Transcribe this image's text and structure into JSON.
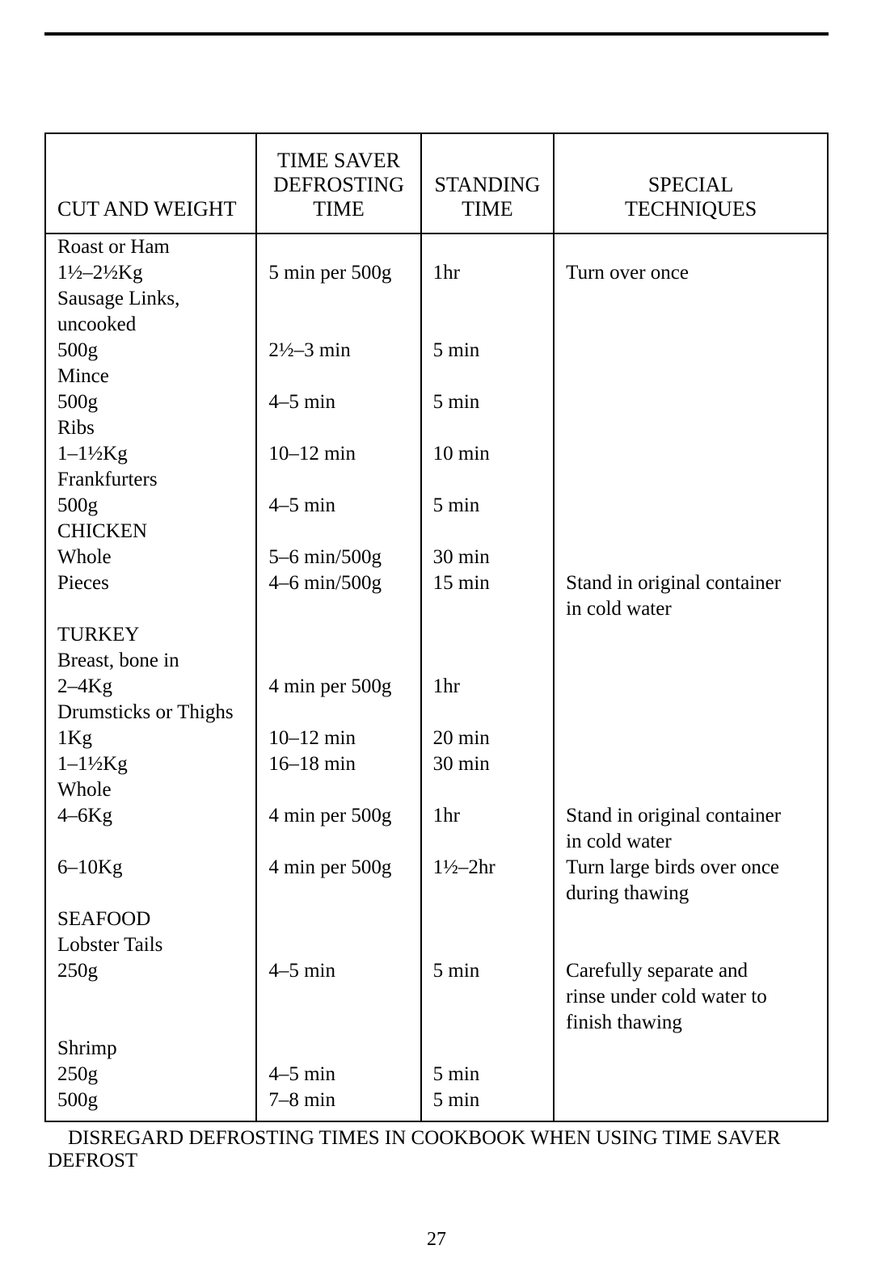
{
  "page_number": "27",
  "top_rule_color": "#000000",
  "table": {
    "border_color": "#000000",
    "font_family": "Times New Roman",
    "headers": {
      "cut": "CUT AND WEIGHT",
      "defrost": "TIME SAVER\nDEFROSTING\nTIME",
      "standing": "STANDING\nTIME",
      "special": "SPECIAL\nTECHNIQUES"
    },
    "rows": [
      {
        "cut": "Roast or Ham",
        "defrost": "",
        "standing": "",
        "special": ""
      },
      {
        "cut": "1½–2½Kg",
        "defrost": "5 min per 500g",
        "standing": "1hr",
        "special": "Turn over once"
      },
      {
        "cut": "Sausage Links,",
        "defrost": "",
        "standing": "",
        "special": ""
      },
      {
        "cut": "uncooked",
        "defrost": "",
        "standing": "",
        "special": ""
      },
      {
        "cut": "500g",
        "defrost": "2½–3 min",
        "standing": "5 min",
        "special": ""
      },
      {
        "cut": "Mince",
        "defrost": "",
        "standing": "",
        "special": ""
      },
      {
        "cut": "500g",
        "defrost": "4–5 min",
        "standing": "5 min",
        "special": ""
      },
      {
        "cut": "Ribs",
        "defrost": "",
        "standing": "",
        "special": ""
      },
      {
        "cut": "1–1½Kg",
        "defrost": "10–12 min",
        "standing": "10 min",
        "special": ""
      },
      {
        "cut": "Frankfurters",
        "defrost": "",
        "standing": "",
        "special": ""
      },
      {
        "cut": "500g",
        "defrost": "4–5 min",
        "standing": "5 min",
        "special": ""
      },
      {
        "section": true,
        "cut": "CHICKEN",
        "defrost": "",
        "standing": "",
        "special": ""
      },
      {
        "cut": "Whole",
        "defrost": "5–6 min/500g",
        "standing": "30 min",
        "special": ""
      },
      {
        "cut": "Pieces",
        "defrost": "4–6 min/500g",
        "standing": "15 min",
        "special": "Stand in original container"
      },
      {
        "cut": "",
        "defrost": "",
        "standing": "",
        "special": "in cold water"
      },
      {
        "section": true,
        "cut": "TURKEY",
        "defrost": "",
        "standing": "",
        "special": ""
      },
      {
        "cut": "Breast, bone in",
        "defrost": "",
        "standing": "",
        "special": ""
      },
      {
        "cut": "2–4Kg",
        "defrost": "4 min per 500g",
        "standing": "1hr",
        "special": ""
      },
      {
        "cut": "Drumsticks or Thighs",
        "defrost": "",
        "standing": "",
        "special": ""
      },
      {
        "cut": "1Kg",
        "defrost": "10–12 min",
        "standing": "20 min",
        "special": ""
      },
      {
        "cut": "1–1½Kg",
        "defrost": "16–18 min",
        "standing": "30 min",
        "special": ""
      },
      {
        "cut": "Whole",
        "defrost": "",
        "standing": "",
        "special": ""
      },
      {
        "cut": "4–6Kg",
        "defrost": "4 min per 500g",
        "standing": "1hr",
        "special": "Stand in original container"
      },
      {
        "cut": "",
        "defrost": "",
        "standing": "",
        "special": "in cold water"
      },
      {
        "cut": "6–10Kg",
        "defrost": "4 min per 500g",
        "standing": "1½–2hr",
        "special": "Turn large birds over once"
      },
      {
        "cut": "",
        "defrost": "",
        "standing": "",
        "special": "during thawing"
      },
      {
        "section": true,
        "cut": "SEAFOOD",
        "defrost": "",
        "standing": "",
        "special": ""
      },
      {
        "cut": "Lobster Tails",
        "defrost": "",
        "standing": "",
        "special": ""
      },
      {
        "cut": "250g",
        "defrost": "4–5 min",
        "standing": "5 min",
        "special": "Carefully separate and"
      },
      {
        "cut": "",
        "defrost": "",
        "standing": "",
        "special": "rinse under cold water to"
      },
      {
        "cut": "",
        "defrost": "",
        "standing": "",
        "special": "finish thawing"
      },
      {
        "cut": "Shrimp",
        "defrost": "",
        "standing": "",
        "special": ""
      },
      {
        "cut": "250g",
        "defrost": "4–5 min",
        "standing": "5 min",
        "special": ""
      },
      {
        "cut": "500g",
        "defrost": "7–8 min",
        "standing": "5 min",
        "special": ""
      },
      {
        "pad": true,
        "cut": "",
        "defrost": "",
        "standing": "",
        "special": ""
      }
    ]
  },
  "footer_note": "    DISREGARD DEFROSTING TIMES IN COOKBOOK WHEN USING TIME SAVER DEFROST"
}
